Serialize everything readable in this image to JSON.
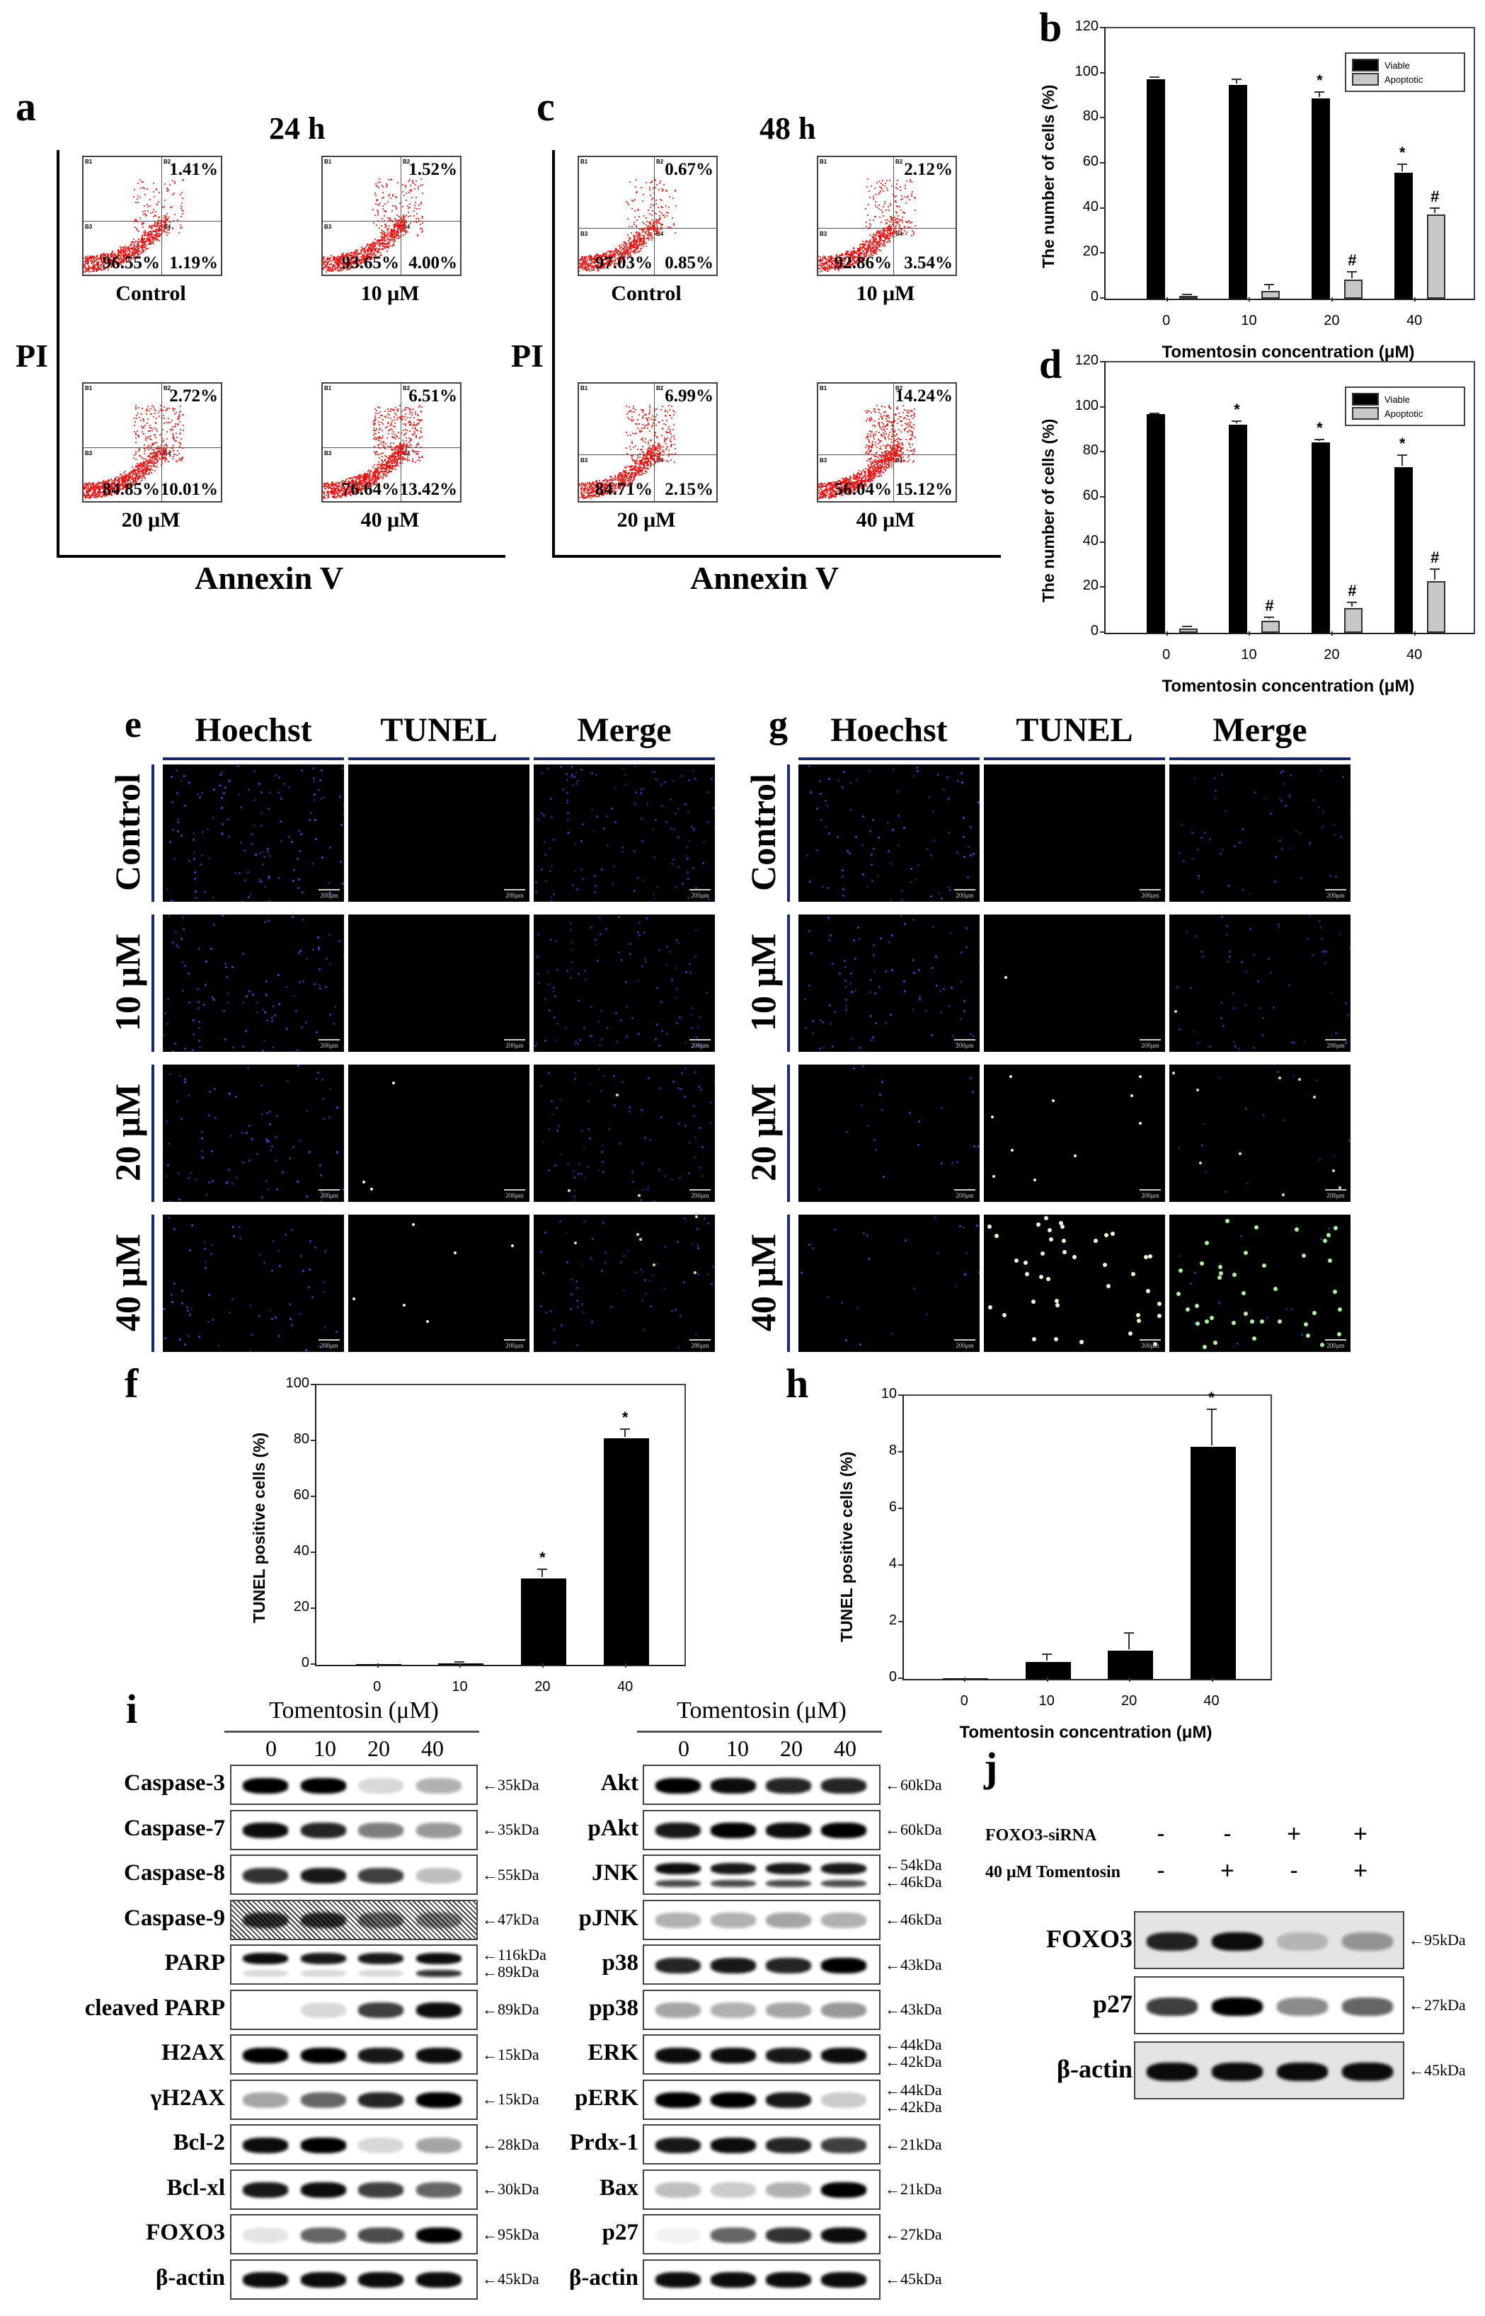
{
  "panels": {
    "a": {
      "label": "a",
      "title": "24 h",
      "y_axis": "PI",
      "x_axis": "Annexin V",
      "quadrant_labels": [
        "B1",
        "B2",
        "B3",
        "B4"
      ],
      "plots": [
        {
          "condition": "Control",
          "B2": "1.41%",
          "B3": "96.55%",
          "B4": "1.19%"
        },
        {
          "condition": "10 μM",
          "B2": "1.52%",
          "B3": "93.65%",
          "B4": "4.00%"
        },
        {
          "condition": "20 μM",
          "B2": "2.72%",
          "B3": "84.85%",
          "B4": "10.01%"
        },
        {
          "condition": "40 μM",
          "B2": "6.51%",
          "B3": "76.64%",
          "B4": "13.42%"
        }
      ]
    },
    "c": {
      "label": "c",
      "title": "48 h",
      "y_axis": "PI",
      "x_axis": "Annexin V",
      "plots": [
        {
          "condition": "Control",
          "B2": "0.67%",
          "B3": "97.03%",
          "B4": "0.85%"
        },
        {
          "condition": "10 μM",
          "B2": "2.12%",
          "B3": "92.86%",
          "B4": "3.54%"
        },
        {
          "condition": "20 μM",
          "B2": "6.99%",
          "B3": "84.71%",
          "B4": "2.15%"
        },
        {
          "condition": "40 μM",
          "B2": "14.24%",
          "B3": "56.04%",
          "B4": "15.12%"
        }
      ]
    },
    "b": {
      "label": "b"
    },
    "d": {
      "label": "d"
    },
    "e": {
      "label": "e",
      "columns": [
        "Hoechst",
        "TUNEL",
        "Merge"
      ],
      "rows": [
        "Control",
        "10 μM",
        "20 μM",
        "40 μM"
      ],
      "scale_bar": "200μm"
    },
    "g": {
      "label": "g",
      "columns": [
        "Hoechst",
        "TUNEL",
        "Merge"
      ],
      "rows": [
        "Control",
        "10 μM",
        "20 μM",
        "40 μM"
      ],
      "scale_bar": "200μm"
    },
    "f": {
      "label": "f"
    },
    "h": {
      "label": "h"
    },
    "i": {
      "label": "i",
      "header": "Tomentosin (μM)",
      "lanes": [
        "0",
        "10",
        "20",
        "40"
      ],
      "left_blots": [
        {
          "protein": "Caspase-3",
          "kda": [
            "←35kDa"
          ]
        },
        {
          "protein": "Caspase-7",
          "kda": [
            "←35kDa"
          ]
        },
        {
          "protein": "Caspase-8",
          "kda": [
            "←55kDa"
          ]
        },
        {
          "protein": "Caspase-9",
          "kda": [
            "←47kDa"
          ]
        },
        {
          "protein": "PARP",
          "kda": [
            "←116kDa",
            "←89kDa"
          ]
        },
        {
          "protein": "cleaved PARP",
          "kda": [
            "←89kDa"
          ]
        },
        {
          "protein": "H2AX",
          "kda": [
            "←15kDa"
          ]
        },
        {
          "protein": "γH2AX",
          "kda": [
            "←15kDa"
          ]
        },
        {
          "protein": "Bcl-2",
          "kda": [
            "←28kDa"
          ]
        },
        {
          "protein": "Bcl-xl",
          "kda": [
            "←30kDa"
          ]
        },
        {
          "protein": "FOXO3",
          "kda": [
            "←95kDa"
          ]
        },
        {
          "protein": "β-actin",
          "kda": [
            "←45kDa"
          ]
        }
      ],
      "right_blots": [
        {
          "protein": "Akt",
          "kda": [
            "←60kDa"
          ]
        },
        {
          "protein": "pAkt",
          "kda": [
            "←60kDa"
          ]
        },
        {
          "protein": "JNK",
          "kda": [
            "←54kDa",
            "←46kDa"
          ]
        },
        {
          "protein": "pJNK",
          "kda": [
            "←46kDa"
          ]
        },
        {
          "protein": "p38",
          "kda": [
            "←43kDa"
          ]
        },
        {
          "protein": "pp38",
          "kda": [
            "←43kDa"
          ]
        },
        {
          "protein": "ERK",
          "kda": [
            "←44kDa",
            "←42kDa"
          ]
        },
        {
          "protein": "pERK",
          "kda": [
            "←44kDa",
            "←42kDa"
          ]
        },
        {
          "protein": "Prdx-1",
          "kda": [
            "←21kDa"
          ]
        },
        {
          "protein": "Bax",
          "kda": [
            "←21kDa"
          ]
        },
        {
          "protein": "p27",
          "kda": [
            "←27kDa"
          ]
        },
        {
          "protein": "β-actin",
          "kda": [
            "←45kDa"
          ]
        }
      ]
    },
    "j": {
      "label": "j",
      "conditions": [
        {
          "name": "FOXO3-siRNA",
          "values": [
            "-",
            "-",
            "+",
            "+"
          ]
        },
        {
          "name": "40 μM Tomentosin",
          "values": [
            "-",
            "+",
            "-",
            "+"
          ]
        }
      ],
      "blots": [
        {
          "protein": "FOXO3",
          "kda": "←95kDa"
        },
        {
          "protein": "p27",
          "kda": "←27kDa"
        },
        {
          "protein": "β-actin",
          "kda": "←45kDa"
        }
      ]
    }
  },
  "chart_data": [
    {
      "id": "b",
      "type": "bar",
      "title": "",
      "categories": [
        "0",
        "10",
        "20",
        "40"
      ],
      "series": [
        {
          "name": "Viable",
          "color": "#000000",
          "values": [
            97.5,
            95,
            89,
            56
          ],
          "errors": [
            0.4,
            2,
            2.5,
            3.5
          ],
          "markers": [
            "",
            "",
            "*",
            "*"
          ]
        },
        {
          "name": "Apoptotic",
          "color": "#c8c8c8",
          "values": [
            1.2,
            3.5,
            8.5,
            37.5
          ],
          "errors": [
            0.5,
            2.5,
            3.2,
            2.5
          ],
          "markers": [
            "",
            "",
            "#",
            "#"
          ]
        }
      ],
      "xlabel": "Tomentosin concentration (μM)",
      "ylabel": "The number of cells (%)",
      "ylim": [
        0,
        120
      ],
      "yticks": [
        "0",
        "20",
        "40",
        "60",
        "80",
        "100",
        "120"
      ],
      "legend_position": "upper right",
      "grid": false
    },
    {
      "id": "d",
      "type": "bar",
      "title": "",
      "categories": [
        "0",
        "10",
        "20",
        "40"
      ],
      "series": [
        {
          "name": "Viable",
          "color": "#000000",
          "values": [
            97,
            92.5,
            84.5,
            73.5
          ],
          "errors": [
            0.2,
            1,
            0.8,
            5
          ],
          "markers": [
            "",
            "*",
            "*",
            "*"
          ]
        },
        {
          "name": "Apoptotic",
          "color": "#c8c8c8",
          "values": [
            2,
            5.5,
            11,
            23
          ],
          "errors": [
            0.6,
            1,
            2.3,
            5
          ],
          "markers": [
            "",
            "#",
            "#",
            "#"
          ]
        }
      ],
      "xlabel": "Tomentosin concentration (μM)",
      "ylabel": "The number of cells (%)",
      "ylim": [
        0,
        120
      ],
      "yticks": [
        "0",
        "20",
        "40",
        "60",
        "80",
        "100",
        "120"
      ],
      "legend_position": "upper right",
      "grid": false
    },
    {
      "id": "f",
      "type": "bar",
      "title": "",
      "categories": [
        "0",
        "10",
        "20",
        "40"
      ],
      "series": [
        {
          "name": "TUNEL positive cells",
          "color": "#000000",
          "values": [
            0,
            0.5,
            31,
            81
          ],
          "errors": [
            0,
            0.2,
            3,
            3
          ],
          "markers": [
            "",
            "",
            "*",
            "*"
          ]
        }
      ],
      "xlabel": "",
      "ylabel": "TUNEL positive cells (%)",
      "ylim": [
        0,
        100
      ],
      "yticks": [
        "0",
        "20",
        "40",
        "60",
        "80",
        "100"
      ],
      "grid": false
    },
    {
      "id": "h",
      "type": "bar",
      "title": "",
      "categories": [
        "0",
        "10",
        "20",
        "40"
      ],
      "series": [
        {
          "name": "TUNEL positive cells",
          "color": "#000000",
          "values": [
            0,
            0.6,
            1.0,
            8.2
          ],
          "errors": [
            0,
            0.25,
            0.6,
            1.3
          ],
          "markers": [
            "",
            "",
            "",
            "*"
          ]
        }
      ],
      "xlabel": "Tomentosin concentration (μM)",
      "ylabel": "TUNEL positive cells (%)",
      "ylim": [
        0,
        10
      ],
      "yticks": [
        "0",
        "2",
        "4",
        "6",
        "8",
        "10"
      ],
      "grid": false
    }
  ]
}
